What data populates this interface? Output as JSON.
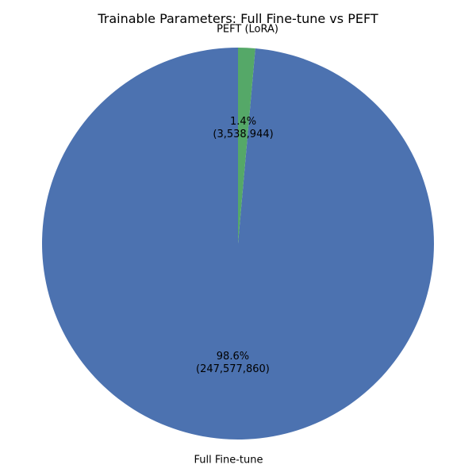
{
  "chart_data": {
    "type": "pie",
    "title": "Trainable Parameters: Full Fine-tune vs PEFT",
    "slices": [
      {
        "label": "Full Fine-tune",
        "value": 247577860,
        "percent_text": "98.6%",
        "count_text": "(247,577,860)",
        "color": "#4c72b0"
      },
      {
        "label": "PEFT (LoRA)",
        "value": 3538944,
        "percent_text": "1.4%",
        "count_text": "(3,538,944)",
        "color": "#55a868"
      }
    ],
    "start_angle_deg": 90,
    "direction": "counterclockwise"
  }
}
